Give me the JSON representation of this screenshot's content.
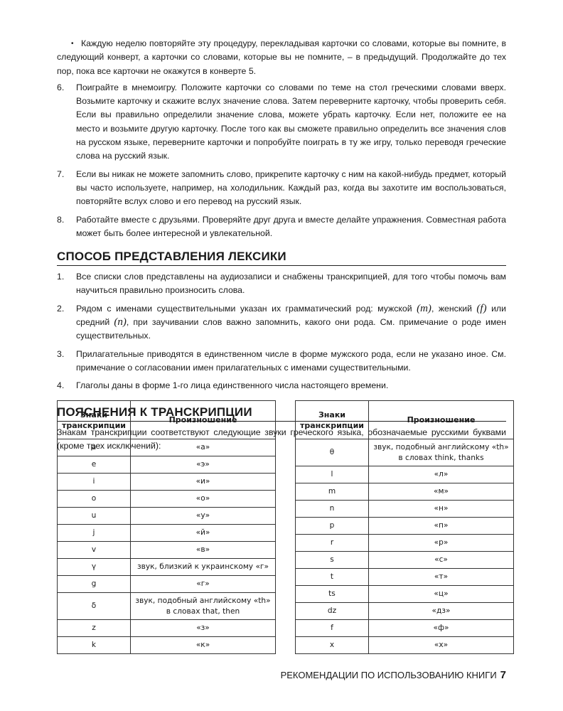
{
  "bullet_paragraph": {
    "bullet": "•",
    "text": "Каждую неделю повторяйте эту процедуру, перекладывая карточки со словами, которые вы помните, в следующий конверт, а карточки со словами, которые вы не помните, – в предыдущий. Продолжайте до тех пор, пока все карточки не окажутся в конверте 5."
  },
  "tips": [
    {
      "number": "6.",
      "text": "Поиграйте в мнемоигру. Положите карточки со словами по теме на стол греческими словами вверх. Возьмите карточку и скажите вслух значение слова. Затем переверните карточку, чтобы проверить себя. Если вы правильно определили значение слова, можете убрать карточку. Если нет, положите ее на место и возьмите другую карточку. После того как вы сможете правильно определить все значения слов на русском языке, переверните карточки и попробуйте поиграть в ту же игру, только переводя греческие слова на русский язык."
    },
    {
      "number": "7.",
      "text": "Если вы никак не можете запомнить слово, прикрепите карточку с ним на какой-нибудь предмет, который вы часто используете, например, на холодильник. Каждый раз, когда вы захотите им воспользоваться, повторяйте вслух слово и его перевод на русский язык."
    },
    {
      "number": "8.",
      "text": "Работайте вместе с друзьями. Проверяйте друг друга и вместе делайте упражнения. Совместная работа может быть более интересной и увлекательной."
    }
  ],
  "section_lexicon": {
    "heading": "СПОСОБ ПРЕДСТАВЛЕНИЯ ЛЕКСИКИ",
    "items": [
      {
        "number": "1.",
        "parts": [
          "Все списки слов представлены на аудиозаписи и снабжены транскрипцией, для того чтобы помочь вам научиться правильно произносить слова."
        ]
      },
      {
        "number": "2.",
        "parts": [
          "Рядом с именами существительными указан их грамматический род: мужской ",
          "(m)",
          ", женский ",
          "(f)",
          " или средний ",
          "(n)",
          ", при заучивании слов важно запомнить, какого они рода. См. примечание о роде имен существительных."
        ]
      },
      {
        "number": "3.",
        "parts": [
          "Прилагательные приводятся в единственном числе в форме мужского рода, если не указано иное. См. примечание о согласовании имен прилагательных с именами существительными."
        ]
      },
      {
        "number": "4.",
        "parts": [
          "Глаголы даны в форме 1-го лица единственного числа настоящего времени."
        ]
      }
    ]
  },
  "section_transcription": {
    "heading": "ПОЯСНЕНИЯ К ТРАНСКРИПЦИИ",
    "intro": "Знакам транскрипции соответствуют следующие звуки греческого языка, обозначаемые русскими буквами (кроме трех исключений):",
    "tables": [
      {
        "header": [
          "Знаки транскрипции",
          "Произношение"
        ],
        "rows": [
          [
            "a",
            "«а»"
          ],
          [
            "e",
            "«э»"
          ],
          [
            "i",
            "«и»"
          ],
          [
            "o",
            "«о»"
          ],
          [
            "u",
            "«у»"
          ],
          [
            "j",
            "«й»"
          ],
          [
            "v",
            "«в»"
          ],
          [
            "γ",
            "звук, близкий к украинскому «г»"
          ],
          [
            "g",
            "«г»"
          ],
          [
            "δ",
            "звук, подобный английскому «th» в словах that, then"
          ],
          [
            "z",
            "«з»"
          ],
          [
            "k",
            "«к»"
          ]
        ]
      },
      {
        "header": [
          "Знаки транскрипции",
          "Произношение"
        ],
        "rows": [
          [
            "θ",
            "звук, подобный английскому «th» в словах think, thanks"
          ],
          [
            "l",
            "«л»"
          ],
          [
            "m",
            "«м»"
          ],
          [
            "n",
            "«н»"
          ],
          [
            "p",
            "«п»"
          ],
          [
            "r",
            "«р»"
          ],
          [
            "s",
            "«с»"
          ],
          [
            "t",
            "«т»"
          ],
          [
            "ts",
            "«ц»"
          ],
          [
            "dz",
            "«дз»"
          ],
          [
            "f",
            "«ф»"
          ],
          [
            "x",
            "«х»"
          ]
        ]
      }
    ]
  },
  "footer": {
    "running_title": "РЕКОМЕНДАЦИИ ПО ИСПОЛЬЗОВАНИЮ КНИГИ",
    "page_number": "7"
  }
}
